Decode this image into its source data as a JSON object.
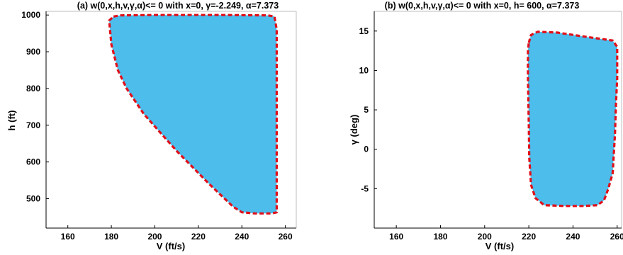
{
  "chart_data": [
    {
      "type": "area",
      "title": "(a) w(0,x,h,v,γ,α)<= 0 with x=0, γ=-2.249, α=7.373",
      "xlabel": "V (ft/s)",
      "ylabel": "h (ft)",
      "xlim": [
        150,
        265
      ],
      "ylim": [
        420,
        1010
      ],
      "xticks": [
        160,
        180,
        200,
        220,
        240,
        260
      ],
      "yticks": [
        500,
        600,
        700,
        800,
        900,
        1000
      ],
      "grid": false,
      "fill_color": "#4dbdec",
      "edge_color": "#e0101a",
      "boundary": [
        [
          181,
          996
        ],
        [
          184,
          999
        ],
        [
          200,
          1000
        ],
        [
          230,
          1000
        ],
        [
          252,
          999
        ],
        [
          255,
          996
        ],
        [
          256,
          960
        ],
        [
          256,
          600
        ],
        [
          256,
          463
        ],
        [
          254,
          460
        ],
        [
          246,
          460
        ],
        [
          240,
          463
        ],
        [
          236,
          478
        ],
        [
          225,
          540
        ],
        [
          210,
          630
        ],
        [
          195,
          730
        ],
        [
          187,
          800
        ],
        [
          183,
          850
        ],
        [
          180,
          920
        ],
        [
          179,
          985
        ]
      ]
    },
    {
      "type": "area",
      "title": "(b) w(0,x,h,v,γ,α)<= 0 with x=0, h= 600, α=7.373",
      "xlabel": "V (ft/s)",
      "ylabel": "γ (deg)",
      "xlim": [
        150,
        262
      ],
      "ylim": [
        -10,
        17.5
      ],
      "xticks": [
        160,
        180,
        200,
        220,
        240,
        260
      ],
      "yticks": [
        -5,
        0,
        5,
        10,
        15
      ],
      "grid": false,
      "fill_color": "#4dbdec",
      "edge_color": "#e0101a",
      "boundary": [
        [
          220,
          13.5
        ],
        [
          221,
          14.5
        ],
        [
          224,
          14.9
        ],
        [
          233,
          14.8
        ],
        [
          245,
          14.3
        ],
        [
          258,
          13.8
        ],
        [
          260,
          13
        ],
        [
          260,
          9
        ],
        [
          259.5,
          6
        ],
        [
          259,
          2
        ],
        [
          258,
          -3
        ],
        [
          256,
          -5
        ],
        [
          254,
          -6.5
        ],
        [
          251,
          -7.1
        ],
        [
          245,
          -7.2
        ],
        [
          236,
          -7.2
        ],
        [
          227,
          -7.1
        ],
        [
          223,
          -6.2
        ],
        [
          221,
          -4.5
        ],
        [
          220.2,
          -1
        ],
        [
          220,
          3
        ],
        [
          219.6,
          9
        ],
        [
          219.6,
          12.5
        ]
      ]
    }
  ]
}
